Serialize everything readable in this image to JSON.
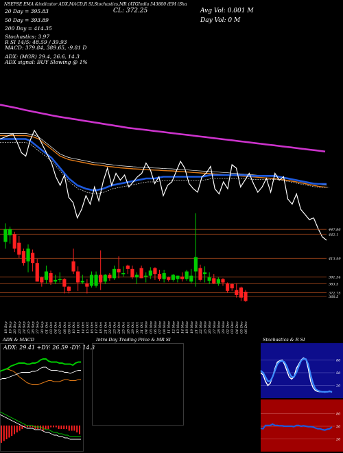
{
  "header": {
    "top_line": "NSEPSE  EMA  &indicator  ADX,MACD,R     SI,Stochastics,MR      (ATGIndia  543800        (EM                 (Sha",
    "avg_vol": "Avg Vol: 0.001 M",
    "day_vol": "Day Vol: 0   M",
    "close": "CL: 372.25"
  },
  "stats": {
    "ema20": "20  Day = 395.83",
    "ema50": "50  Day = 393.89",
    "ema200": "200  Day = 414.35",
    "stochastics": "Stochastics: 3.97",
    "rsi": "R                  SI 14/5: 48.59 / 39.93",
    "macd": "MACD: 379.84,  389.65,  -9.81 D",
    "adx": "ADX:                                (MGR) 29.4,  26.6,  14.3",
    "adx_signal": "ADX  signal:                                 BUY Slowing @ 1%"
  },
  "colors": {
    "ema20": "#1e5adc",
    "ema50": "#e07a18",
    "ema200": "#cc33cc",
    "price": "#ffffff",
    "up": "#00cc00",
    "down": "#ff2020",
    "level": "#a0451b"
  },
  "chart_data": [
    {
      "type": "line",
      "name": "price-ema-overlay",
      "series": [
        {
          "name": "EMA 200",
          "values": [
            442,
            441.5,
            441,
            440.5,
            440,
            439.4,
            438.8,
            438.3,
            437.8,
            437.3,
            436.8,
            436.3,
            435.8,
            435.3,
            434.9,
            434.5,
            434.1,
            433.7,
            433.3,
            432.9,
            432.5,
            432.1,
            431.7,
            431.3,
            430.9,
            430.5,
            430.1,
            429.7,
            429.3,
            428.9,
            428.5,
            428.2,
            427.9,
            427.6,
            427.3,
            427,
            426.7,
            426.4,
            426.1,
            425.8,
            425.5,
            425.2,
            424.9,
            424.6,
            424.3,
            424,
            423.7,
            423.4,
            423.1,
            422.8,
            422.5,
            422.2,
            421.9,
            421.6,
            421.3,
            421,
            420.7,
            420.4,
            420.1,
            419.8,
            419.5,
            419.2,
            418.9,
            418.6,
            418.3,
            418,
            417.7,
            417.4,
            417.1,
            416.8,
            416.5,
            416.2,
            415.9,
            415.6,
            415.3,
            415,
            414.7
          ]
        },
        {
          "name": "EMA 50",
          "values": [
            424,
            424,
            424,
            424,
            424,
            424,
            424,
            423.6,
            423,
            422,
            420,
            418,
            416,
            414,
            412,
            411,
            410,
            409.5,
            409,
            408.5,
            408,
            407.5,
            407,
            406.8,
            406.5,
            406,
            405.8,
            405.5,
            405.2,
            405,
            404.8,
            404.6,
            404.5,
            404.3,
            404.1,
            404,
            403.9,
            403.8,
            403.6,
            403.5,
            403.4,
            403.2,
            403,
            402.9,
            402.7,
            402.5,
            402.3,
            402.1,
            402,
            401.8,
            401.6,
            401.5,
            401.3,
            401.1,
            400.9,
            400.7,
            400.5,
            400.3,
            400.1,
            399.9,
            399.7,
            399.5,
            399.3,
            399.1,
            398.8,
            398.5,
            398.2,
            397.8,
            397.4,
            397,
            396.5,
            396,
            395.5,
            395,
            394.5,
            394.1,
            393.9
          ]
        },
        {
          "name": "EMA 20",
          "values": [
            422,
            422,
            422,
            422,
            422,
            422,
            422,
            421,
            419,
            417,
            415,
            413,
            411,
            408,
            405,
            402,
            399,
            397,
            395,
            394,
            393,
            392.5,
            392,
            392.5,
            393,
            394,
            395,
            395.5,
            396,
            396.5,
            397,
            397.5,
            398,
            398.5,
            399,
            399,
            399,
            399.5,
            400,
            400,
            400,
            400,
            400,
            400,
            400,
            400,
            400,
            400,
            400.5,
            401,
            401,
            401,
            401,
            401,
            401,
            401,
            401,
            401,
            400.5,
            400.5,
            400.5,
            400.5,
            400.5,
            400.5,
            400.5,
            400,
            399.5,
            399,
            398.5,
            398,
            397.5,
            397,
            396.5,
            396,
            395.8,
            395.8,
            395.8
          ]
        },
        {
          "name": "Price",
          "values": [
            422,
            423,
            424,
            425,
            420,
            414,
            412,
            421,
            427,
            423,
            418,
            413,
            408,
            400,
            395,
            401,
            388,
            385,
            376,
            381,
            389,
            384,
            394,
            386,
            397,
            405,
            395,
            402,
            398,
            401,
            394,
            397,
            400,
            402,
            408,
            404,
            396,
            400,
            389,
            395,
            397,
            403,
            409,
            405,
            396,
            393,
            391,
            400,
            402,
            406,
            393,
            390,
            397,
            393,
            407,
            405,
            394,
            398,
            402,
            396,
            391,
            394,
            399,
            391,
            402,
            398,
            400,
            387,
            384,
            390,
            381,
            378,
            375,
            376,
            370,
            365,
            363
          ]
        }
      ]
    },
    {
      "type": "candlestick",
      "name": "price-candles",
      "levels": [
        {
          "label": "447.86",
          "value": 447.86
        },
        {
          "label": "442.1",
          "value": 442.1
        },
        {
          "label": "413.59",
          "value": 413.59
        },
        {
          "label": "391.34",
          "value": 391.34
        },
        {
          "label": "383.5",
          "value": 383.5
        },
        {
          "label": "372.75",
          "value": 372.75
        },
        {
          "label": "368.5",
          "value": 368.5
        }
      ],
      "x_labels": [
        "18 Sep",
        "19 Sep",
        "20 Sep",
        "23 Sep",
        "24 Sep",
        "25 Sep",
        "26 Sep",
        "27 Sep",
        "30 Sep",
        "01 Oct",
        "03 Oct",
        "04 Oct",
        "07 Oct",
        "08 Oct",
        "09 Oct",
        "10 Oct",
        "11 Oct",
        "14 Oct",
        "15 Oct",
        "16 Oct",
        "17 Oct",
        "18 Oct",
        "21 Oct",
        "22 Oct",
        "23 Oct",
        "24 Oct",
        "25 Oct",
        "28 Oct",
        "29 Oct",
        "30 Oct",
        "31 Oct",
        "04 Nov",
        "05 Nov",
        "06 Nov",
        "07 Nov",
        "08 Nov",
        "11 Nov",
        "12 Nov",
        "13 Nov",
        "14 Nov",
        "18 Nov",
        "19 Nov",
        "21 Nov",
        "22 Nov",
        "25 Nov",
        "26 Nov",
        "27 Nov",
        "28 Nov",
        "29 Nov",
        "02 Dec",
        "03 Dec",
        "04 Dec",
        "05 Dec",
        "06 Dec"
      ],
      "candles": [
        {
          "o": 433,
          "h": 455,
          "l": 425,
          "c": 448
        },
        {
          "o": 441,
          "h": 451,
          "l": 431,
          "c": 448
        },
        {
          "o": 442,
          "h": 445,
          "l": 421,
          "c": 425
        },
        {
          "o": 432,
          "h": 440,
          "l": 414,
          "c": 418
        },
        {
          "o": 422,
          "h": 425,
          "l": 405,
          "c": 408
        },
        {
          "o": 410,
          "h": 430,
          "l": 397,
          "c": 425
        },
        {
          "o": 420,
          "h": 424,
          "l": 398,
          "c": 408
        },
        {
          "o": 408,
          "h": 413,
          "l": 386,
          "c": 386
        },
        {
          "o": 391,
          "h": 392,
          "l": 380,
          "c": 385
        },
        {
          "o": 388,
          "h": 405,
          "l": 384,
          "c": 398
        },
        {
          "o": 396,
          "h": 399,
          "l": 382,
          "c": 385
        },
        {
          "o": 386,
          "h": 394,
          "l": 383,
          "c": 388
        },
        {
          "o": 388,
          "h": 397,
          "l": 385,
          "c": 389
        },
        {
          "o": 389,
          "h": 390,
          "l": 372,
          "c": 380
        },
        {
          "o": 380,
          "h": 381,
          "l": 372,
          "c": 375
        },
        {
          "o": 410,
          "h": 425,
          "l": 395,
          "c": 398
        },
        {
          "o": 398,
          "h": 404,
          "l": 375,
          "c": 385
        },
        {
          "o": 385,
          "h": 394,
          "l": 383,
          "c": 387
        },
        {
          "o": 384,
          "h": 389,
          "l": 372,
          "c": 380
        },
        {
          "o": 381,
          "h": 398,
          "l": 379,
          "c": 394
        },
        {
          "o": 381,
          "h": 398,
          "l": 379,
          "c": 394
        },
        {
          "o": 394,
          "h": 423,
          "l": 376,
          "c": 385
        },
        {
          "o": 386,
          "h": 395,
          "l": 383,
          "c": 394
        },
        {
          "o": 394,
          "h": 396,
          "l": 387,
          "c": 390
        },
        {
          "o": 390,
          "h": 405,
          "l": 388,
          "c": 401
        },
        {
          "o": 401,
          "h": 416,
          "l": 390,
          "c": 397
        },
        {
          "o": 396,
          "h": 404,
          "l": 392,
          "c": 396
        },
        {
          "o": 405,
          "h": 406,
          "l": 395,
          "c": 401
        },
        {
          "o": 401,
          "h": 405,
          "l": 389,
          "c": 391
        },
        {
          "o": 391,
          "h": 397,
          "l": 383,
          "c": 394
        },
        {
          "o": 402,
          "h": 405,
          "l": 390,
          "c": 390
        },
        {
          "o": 392,
          "h": 397,
          "l": 385,
          "c": 393
        },
        {
          "o": 393,
          "h": 403,
          "l": 389,
          "c": 399
        },
        {
          "o": 402,
          "h": 403,
          "l": 388,
          "c": 395
        },
        {
          "o": 395,
          "h": 400,
          "l": 387,
          "c": 389
        },
        {
          "o": 389,
          "h": 400,
          "l": 385,
          "c": 396
        },
        {
          "o": 391,
          "h": 392,
          "l": 386,
          "c": 388
        },
        {
          "o": 388,
          "h": 395,
          "l": 386,
          "c": 394
        },
        {
          "o": 389,
          "h": 393,
          "l": 385,
          "c": 393
        },
        {
          "o": 392,
          "h": 397,
          "l": 386,
          "c": 389
        },
        {
          "o": 389,
          "h": 400,
          "l": 387,
          "c": 398
        },
        {
          "o": 386,
          "h": 401,
          "l": 384,
          "c": 393
        },
        {
          "o": 398,
          "h": 467,
          "l": 380,
          "c": 415
        },
        {
          "o": 402,
          "h": 406,
          "l": 386,
          "c": 388
        },
        {
          "o": 395,
          "h": 404,
          "l": 385,
          "c": 397
        },
        {
          "o": 387,
          "h": 397,
          "l": 383,
          "c": 391
        },
        {
          "o": 390,
          "h": 395,
          "l": 383,
          "c": 384
        },
        {
          "o": 384,
          "h": 391,
          "l": 381,
          "c": 389
        },
        {
          "o": 389,
          "h": 390,
          "l": 381,
          "c": 385
        },
        {
          "o": 384,
          "h": 385,
          "l": 373,
          "c": 375
        },
        {
          "o": 383,
          "h": 384,
          "l": 375,
          "c": 378
        },
        {
          "o": 376,
          "h": 384,
          "l": 367,
          "c": 370
        },
        {
          "o": 379,
          "h": 380,
          "l": 363,
          "c": 367
        },
        {
          "o": 374,
          "h": 376,
          "l": 362,
          "c": 363
        }
      ]
    },
    {
      "type": "line",
      "name": "adx-macd",
      "series": [
        {
          "name": "ADX",
          "values": [
            14,
            15,
            16,
            16,
            15,
            14,
            12,
            9,
            7,
            5,
            3,
            2,
            1,
            1,
            1,
            2,
            3,
            4,
            5,
            5,
            4,
            4,
            4,
            5,
            6,
            6,
            5,
            5,
            5,
            6,
            6
          ]
        },
        {
          "name": "+DI",
          "values": [
            26,
            27,
            28,
            29,
            31,
            32,
            33,
            34,
            34,
            34,
            33,
            33,
            34,
            34,
            35,
            37,
            38,
            38,
            36,
            35,
            35,
            35,
            34,
            34,
            33,
            33,
            33,
            32,
            34,
            35,
            35
          ]
        },
        {
          "name": "-DI",
          "values": [
            26,
            27,
            27,
            28,
            29,
            30,
            31,
            32,
            33,
            33,
            33,
            33,
            34,
            34,
            35,
            37,
            38,
            38,
            36,
            35,
            35,
            35,
            34,
            34,
            33,
            33,
            32,
            33,
            34,
            35,
            35
          ]
        },
        {
          "name": "MACD",
          "values": [
            8,
            7,
            6,
            5,
            4,
            3,
            2,
            1,
            0,
            -1,
            -2,
            -2,
            -2,
            -3,
            -3,
            -3,
            -4,
            -5,
            -5,
            -6,
            -7,
            -7,
            -8,
            -8,
            -9,
            -9,
            -10,
            -10,
            -10,
            -10,
            -10
          ]
        },
        {
          "name": "MACD histogram",
          "values": [
            -10,
            -9,
            -8,
            -7,
            -6,
            -5,
            -4,
            -3,
            -2,
            -1,
            -1,
            -1,
            -1,
            -2,
            -2,
            -2,
            -3,
            -2,
            -2,
            -1,
            -1,
            -1,
            -2,
            -2,
            -2,
            -2,
            -3,
            -3,
            -3,
            -4,
            -5
          ]
        }
      ]
    },
    {
      "type": "line",
      "name": "stochastics-rsi",
      "y_ticks_top": [
        "80",
        "50",
        "20"
      ],
      "y_ticks_bottom": [
        "80",
        "50",
        "20"
      ],
      "series": [
        {
          "name": "Stochastic %K",
          "values": [
            50,
            45,
            30,
            20,
            25,
            40,
            60,
            75,
            78,
            80,
            70,
            55,
            40,
            35,
            40,
            60,
            70,
            80,
            85,
            82,
            60,
            30,
            15,
            8,
            6,
            5,
            5,
            4,
            5,
            7,
            4
          ]
        },
        {
          "name": "Stochastic %D",
          "values": [
            55,
            50,
            40,
            30,
            30,
            40,
            55,
            70,
            76,
            78,
            75,
            65,
            50,
            40,
            40,
            50,
            65,
            78,
            83,
            82,
            70,
            45,
            25,
            12,
            8,
            6,
            5,
            5,
            5,
            6,
            5
          ]
        },
        {
          "name": "RSI",
          "values": [
            45,
            44,
            52,
            52,
            52,
            55,
            52,
            52,
            51,
            51,
            50,
            50,
            50,
            50,
            49,
            52,
            52,
            50,
            51,
            50,
            49,
            49,
            48,
            46,
            44,
            44,
            42,
            41,
            43,
            44,
            48
          ]
        }
      ]
    }
  ],
  "panels": {
    "adx_macd_title": "ADX  & MACD",
    "adx_readout": "ADX: 29.41  +DY: 26.59  -DY: 14.3",
    "intraday_title": "Intra  Day Trading Price  & MR                    SI",
    "stoch_title": "Stochastics & R              SI"
  }
}
